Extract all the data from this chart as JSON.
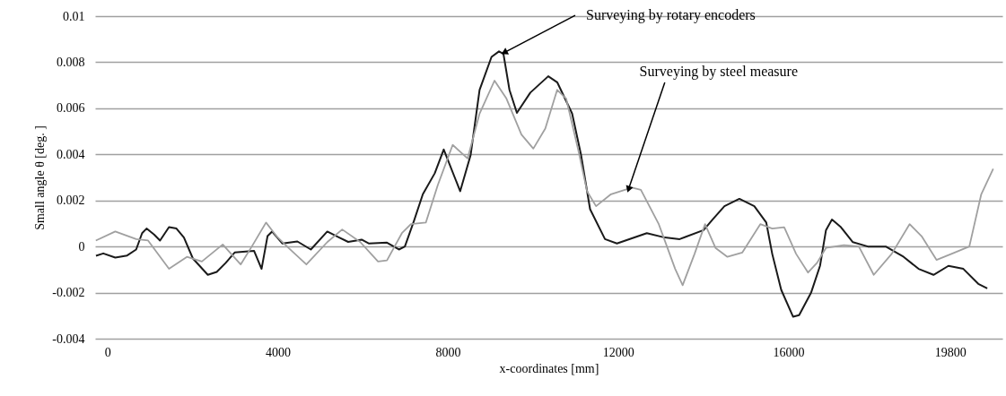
{
  "chart_data": {
    "type": "line",
    "xlabel": "x-coordinates  [mm]",
    "ylabel": "Small angle θ [deg. ]",
    "xlim": [
      -290,
      21030
    ],
    "xticks": [
      0,
      4000,
      8000,
      12000,
      16000,
      19800
    ],
    "ylim": [
      -0.004,
      0.01
    ],
    "yticks": [
      -0.004,
      -0.002,
      0,
      0.002,
      0.004,
      0.006,
      0.008,
      0.01
    ],
    "grid": "y",
    "marker": "none",
    "line_style": "solid",
    "annotations": [
      {
        "text": "Surveying by  rotary encoders",
        "x": 9347,
        "y": 0.00844
      },
      {
        "text": "Surveying by steel measure",
        "x": 12253,
        "y": 0.00253
      }
    ],
    "series": [
      {
        "color": "#1a1a1a",
        "x": [
          -270,
          -98,
          183,
          463,
          674,
          814,
          919,
          1095,
          1235,
          1446,
          1621,
          1797,
          2007,
          2358,
          2568,
          2779,
          2989,
          3446,
          3621,
          3761,
          3867,
          4112,
          4463,
          4779,
          5165,
          5446,
          5656,
          5972,
          6147,
          6568,
          6849,
          6989,
          7200,
          7411,
          7691,
          7902,
          8288,
          8533,
          8744,
          9025,
          9200,
          9305,
          9446,
          9621,
          9937,
          10358,
          10568,
          10919,
          11130,
          11341,
          11691,
          11972,
          12674,
          13095,
          13446,
          14007,
          14218,
          14498,
          14849,
          15200,
          15481,
          15621,
          15832,
          16112,
          16253,
          16533,
          16744,
          16884,
          17025,
          17235,
          17516,
          17867,
          18288,
          18709,
          19060,
          19411,
          19762,
          20112,
          20463,
          20674
        ],
        "values": [
          -0.0004,
          -0.0003,
          -0.00048,
          -0.00039,
          -0.00013,
          0.00058,
          0.00078,
          0.00052,
          0.00026,
          0.00084,
          0.00078,
          0.00039,
          -0.00052,
          -0.00123,
          -0.0011,
          -0.00071,
          -0.00026,
          -0.00019,
          -0.00097,
          0.00045,
          0.00065,
          0.00013,
          0.00022,
          -0.00013,
          0.00065,
          0.00039,
          0.0002,
          0.0003,
          0.00013,
          0.00017,
          -0.00013,
          0,
          0.0011,
          0.00227,
          0.00318,
          0.00421,
          0.0024,
          0.00396,
          0.0068,
          0.00823,
          0.00847,
          0.00836,
          0.0068,
          0.0058,
          0.00668,
          0.00739,
          0.00713,
          0.00577,
          0.00396,
          0.00162,
          0.00032,
          0.00013,
          0.00058,
          0.00039,
          0.00032,
          0.00071,
          0.00117,
          0.00175,
          0.00207,
          0.00175,
          0.00104,
          -0.00032,
          -0.00188,
          -0.00305,
          -0.00298,
          -0.00201,
          -0.00084,
          0.00071,
          0.00117,
          0.00084,
          0.00019,
          0,
          0,
          -0.00045,
          -0.00097,
          -0.00123,
          -0.00084,
          -0.00097,
          -0.00162,
          -0.00182
        ]
      },
      {
        "color": "#a0a0a0",
        "x": [
          -274,
          183,
          674,
          954,
          1446,
          1867,
          2218,
          2709,
          3130,
          3411,
          3726,
          3972,
          4253,
          4674,
          5165,
          5516,
          5937,
          6358,
          6568,
          6919,
          7130,
          7481,
          7761,
          8112,
          8463,
          8744,
          9095,
          9376,
          9727,
          10007,
          10288,
          10568,
          10779,
          11060,
          11270,
          11481,
          11832,
          12323,
          12534,
          12955,
          13340,
          13516,
          13796,
          14042,
          14288,
          14568,
          14919,
          15341,
          15621,
          15902,
          16182,
          16463,
          16674,
          16884,
          17305,
          17656,
          18007,
          18428,
          18849,
          19130,
          19481,
          19832,
          20253,
          20533,
          20814
        ],
        "values": [
          0.00026,
          0.00065,
          0.00032,
          0.00026,
          -0.00097,
          -0.00045,
          -0.00065,
          9e-05,
          -0.00078,
          6e-05,
          0.00104,
          0.00045,
          -6e-05,
          -0.00078,
          0.00019,
          0.00074,
          0.0002,
          -0.00065,
          -0.0006,
          0.00058,
          0.00097,
          0.00104,
          0.00266,
          0.00441,
          0.00382,
          0.00577,
          0.0072,
          0.00642,
          0.00486,
          0.00425,
          0.00512,
          0.0068,
          0.00642,
          0.00421,
          0.0024,
          0.00175,
          0.00227,
          0.00256,
          0.00246,
          0.00097,
          -0.00097,
          -0.00168,
          -0.00032,
          0.00097,
          -6e-05,
          -0.00045,
          -0.00026,
          0.00097,
          0.00078,
          0.00084,
          -0.00032,
          -0.00113,
          -0.00071,
          -6e-05,
          6e-05,
          0,
          -0.00123,
          -0.00032,
          0.00097,
          0.00045,
          -0.00058,
          -0.00032,
          0,
          0.00227,
          0.00337
        ]
      }
    ]
  }
}
